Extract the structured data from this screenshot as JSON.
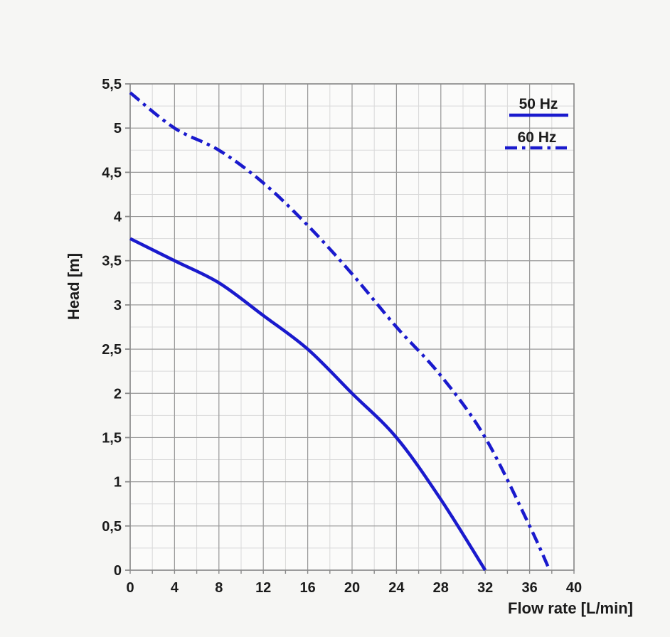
{
  "page": {
    "background": "#f6f6f4"
  },
  "chart_data": {
    "type": "line",
    "title": "",
    "xlabel": "Flow rate [L/min]",
    "ylabel": "Head [m]",
    "xlim": [
      0,
      40
    ],
    "ylim": [
      0,
      5.5
    ],
    "x_tick_values": [
      0,
      4,
      8,
      12,
      16,
      20,
      24,
      28,
      32,
      36,
      40
    ],
    "x_tick_labels": [
      "0",
      "4",
      "8",
      "12",
      "16",
      "20",
      "24",
      "28",
      "32",
      "36",
      "40"
    ],
    "y_tick_values": [
      0,
      0.5,
      1,
      1.5,
      2,
      2.5,
      3,
      3.5,
      4,
      4.5,
      5,
      5.5
    ],
    "y_tick_labels": [
      "0",
      "0,5",
      "1",
      "1,5",
      "2",
      "2,5",
      "3",
      "3,5",
      "4",
      "4,5",
      "5",
      "5,5"
    ],
    "grid": {
      "visible": true,
      "x_minor_step": 2,
      "y_minor_step": 0.25
    },
    "legend_position": "top-right",
    "series": [
      {
        "name": "50 Hz",
        "style": "solid",
        "color": "#1a1acd",
        "points": [
          [
            0,
            3.75
          ],
          [
            4,
            3.5
          ],
          [
            8,
            3.25
          ],
          [
            12,
            2.88
          ],
          [
            16,
            2.5
          ],
          [
            20,
            2.0
          ],
          [
            24,
            1.5
          ],
          [
            28,
            0.8
          ],
          [
            32,
            0
          ]
        ]
      },
      {
        "name": "60 Hz",
        "style": "dash-dot",
        "color": "#1a1acd",
        "points": [
          [
            0,
            5.4
          ],
          [
            4,
            5.0
          ],
          [
            8,
            4.75
          ],
          [
            12,
            4.38
          ],
          [
            16,
            3.9
          ],
          [
            20,
            3.35
          ],
          [
            24,
            2.75
          ],
          [
            28,
            2.2
          ],
          [
            32,
            1.5
          ],
          [
            36,
            0.5
          ],
          [
            37.8,
            0
          ]
        ]
      }
    ]
  },
  "colors": {
    "curve_blue": "#1a1acd",
    "grid_minor": "#d9d9d9",
    "grid_major": "#9a9a9a",
    "axis_border": "#8a8a8a",
    "text": "#1b1b1b",
    "plot_bg": "#fbfbfa"
  }
}
